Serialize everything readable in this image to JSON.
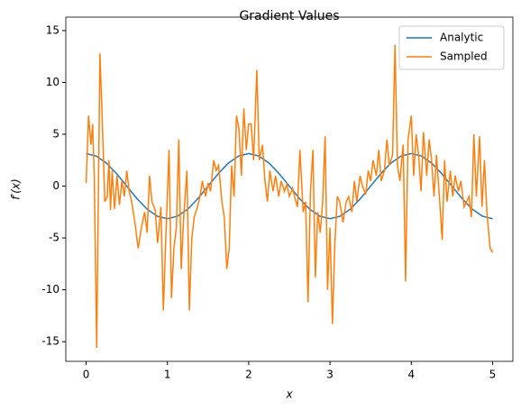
{
  "chart_data": {
    "type": "line",
    "title": "Gradient Values",
    "x_label": "x",
    "y_label": "f′(x)",
    "xlim": [
      -0.25,
      5.25
    ],
    "ylim": [
      -16.9,
      16.3
    ],
    "xticks": [
      0,
      1,
      2,
      3,
      4,
      5
    ],
    "yticks": [
      -15,
      -10,
      -5,
      0,
      5,
      10,
      15
    ],
    "legend": "upper right",
    "series": [
      {
        "name": "Analytic",
        "color": "#1f77b4",
        "x": [
          0,
          0.125,
          0.25,
          0.375,
          0.5,
          0.625,
          0.75,
          0.875,
          1,
          1.125,
          1.25,
          1.375,
          1.5,
          1.625,
          1.75,
          1.875,
          2,
          2.125,
          2.25,
          2.375,
          2.5,
          2.625,
          2.75,
          2.875,
          3,
          3.125,
          3.25,
          3.375,
          3.5,
          3.625,
          3.75,
          3.875,
          4,
          4.125,
          4.25,
          4.375,
          4.5,
          4.625,
          4.75,
          4.875,
          5
        ],
        "values": [
          3.14,
          2.9,
          2.22,
          1.2,
          0,
          -1.2,
          -2.22,
          -2.9,
          -3.14,
          -2.9,
          -2.22,
          -1.2,
          0,
          1.2,
          2.22,
          2.9,
          3.14,
          2.9,
          2.22,
          1.2,
          0,
          -1.2,
          -2.22,
          -2.9,
          -3.14,
          -2.9,
          -2.22,
          -1.2,
          0,
          1.2,
          2.22,
          2.9,
          3.14,
          2.9,
          2.22,
          1.2,
          0,
          -1.2,
          -2.22,
          -2.9,
          -3.14
        ]
      },
      {
        "name": "Sampled",
        "color": "#ff7f0e",
        "x": [
          0,
          0.03,
          0.06,
          0.08,
          0.1,
          0.13,
          0.17,
          0.2,
          0.23,
          0.26,
          0.28,
          0.3,
          0.32,
          0.35,
          0.38,
          0.41,
          0.44,
          0.47,
          0.5,
          0.53,
          0.56,
          0.6,
          0.64,
          0.68,
          0.72,
          0.75,
          0.78,
          0.81,
          0.85,
          0.88,
          0.92,
          0.95,
          0.98,
          1.02,
          1.05,
          1.08,
          1.11,
          1.14,
          1.17,
          1.2,
          1.24,
          1.27,
          1.3,
          1.33,
          1.37,
          1.4,
          1.43,
          1.47,
          1.5,
          1.53,
          1.57,
          1.6,
          1.63,
          1.67,
          1.7,
          1.73,
          1.76,
          1.79,
          1.82,
          1.85,
          1.88,
          1.91,
          1.94,
          1.97,
          2.0,
          2.03,
          2.06,
          2.1,
          2.13,
          2.17,
          2.2,
          2.23,
          2.26,
          2.3,
          2.33,
          2.37,
          2.4,
          2.44,
          2.47,
          2.5,
          2.54,
          2.57,
          2.6,
          2.63,
          2.67,
          2.7,
          2.73,
          2.76,
          2.79,
          2.82,
          2.85,
          2.88,
          2.91,
          2.94,
          2.97,
          3.0,
          3.03,
          3.06,
          3.09,
          3.12,
          3.16,
          3.2,
          3.23,
          3.27,
          3.3,
          3.33,
          3.37,
          3.4,
          3.44,
          3.47,
          3.5,
          3.53,
          3.57,
          3.6,
          3.63,
          3.67,
          3.7,
          3.73,
          3.77,
          3.8,
          3.83,
          3.86,
          3.9,
          3.93,
          3.96,
          4.0,
          4.03,
          4.06,
          4.09,
          4.12,
          4.15,
          4.19,
          4.22,
          4.25,
          4.28,
          4.31,
          4.35,
          4.38,
          4.41,
          4.44,
          4.48,
          4.51,
          4.54,
          4.58,
          4.61,
          4.65,
          4.68,
          4.71,
          4.74,
          4.77,
          4.8,
          4.84,
          4.87,
          4.9,
          4.93,
          4.97,
          5.0
        ],
        "values": [
          0.3,
          6.8,
          4.0,
          6.0,
          1.0,
          -15.6,
          12.8,
          6.0,
          -1.5,
          -1.0,
          2.5,
          -2.3,
          1.5,
          -2.2,
          1.0,
          -1.8,
          0.5,
          -1.0,
          1.5,
          -0.5,
          -1.5,
          -3.5,
          -6.0,
          -4.0,
          -2.5,
          -4.5,
          1.0,
          -1.5,
          -2.3,
          -5.5,
          -2.0,
          -12.0,
          -5.0,
          3.5,
          -10.8,
          -6.0,
          -4.0,
          4.5,
          -8.0,
          -3.0,
          1.5,
          -12.0,
          -5.0,
          -3.0,
          -2.0,
          -1.0,
          0.5,
          -1.0,
          0.3,
          -0.5,
          2.5,
          1.5,
          2.0,
          -1.5,
          -3.0,
          -8.0,
          -6.0,
          2.0,
          -1.0,
          6.8,
          5.5,
          1.0,
          7.5,
          3.5,
          6.0,
          6.0,
          2.5,
          11.2,
          2.5,
          4.0,
          0.5,
          -1.5,
          1.5,
          -0.5,
          1.0,
          -1.0,
          0.5,
          -0.5,
          0.2,
          -1.0,
          -0.2,
          -1.2,
          -2.0,
          3.5,
          -2.5,
          -1.5,
          -11.2,
          -0.5,
          3.5,
          -8.8,
          -2.5,
          -4.5,
          -1.5,
          4.8,
          -10.0,
          -4.0,
          -13.3,
          -5.5,
          -1.0,
          -1.5,
          -3.5,
          -1.5,
          -1.0,
          -2.5,
          0.5,
          -1.5,
          1.0,
          0.0,
          -0.8,
          1.5,
          0.5,
          2.5,
          1.0,
          3.5,
          0.5,
          1.5,
          4.5,
          2.0,
          3.0,
          13.6,
          2.0,
          0.5,
          4.0,
          -9.2,
          4.5,
          6.8,
          1.0,
          5.0,
          3.0,
          -0.5,
          5.2,
          1.0,
          4.5,
          2.5,
          -1.0,
          3.0,
          -1.5,
          -5.2,
          2.5,
          -1.5,
          1.5,
          -1.0,
          1.0,
          -0.5,
          0.5,
          -2.0,
          -1.5,
          -1.0,
          -3.0,
          5.0,
          -1.0,
          4.8,
          -2.0,
          2.5,
          -2.5,
          -6.0,
          -6.4
        ]
      }
    ]
  }
}
